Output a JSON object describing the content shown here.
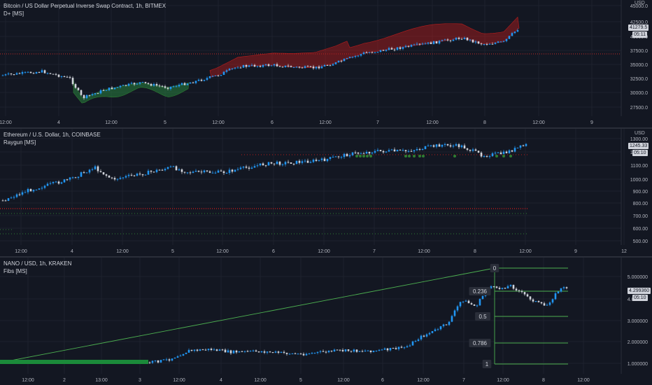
{
  "colors": {
    "bg": "#131722",
    "up": "#2196f3",
    "down": "#d1d4dc",
    "grid": "#1e222d",
    "axis_text": "#b2b5be",
    "red": "#b71c1c",
    "green": "#26a69a",
    "fib": "#4caf50"
  },
  "panes": [
    {
      "id": "btc",
      "title": "Bitcoin / US Dollar Perpetual Inverse Swap Contract, 1h, BITMEX",
      "indicator": "D+ [MS]",
      "currency": "USD",
      "price_label": "41279.5",
      "countdown": "05:11",
      "y_ticks": [
        "45000.0",
        "42500.0",
        "40000.0",
        "37500.0",
        "35000.0",
        "32500.0",
        "30000.0",
        "27500.0"
      ],
      "x_ticks": [
        "12:00",
        "4",
        "12:00",
        "5",
        "12:00",
        "6",
        "12:00",
        "7",
        "12:00",
        "8",
        "12:00",
        "9"
      ]
    },
    {
      "id": "eth",
      "title": "Ethereum / U.S. Dollar, 1h, COINBASE",
      "indicator": "Raygun [MS]",
      "currency": "USD",
      "price_label": "1245.33",
      "countdown": "05:10",
      "y_ticks": [
        "1300.00",
        "1200.00",
        "1100.00",
        "1000.00",
        "900.00",
        "800.00",
        "700.00",
        "600.00",
        "500.00"
      ],
      "x_ticks": [
        "12:00",
        "4",
        "12:00",
        "5",
        "12:00",
        "6",
        "12:00",
        "7",
        "12:00",
        "8",
        "12:00",
        "9",
        "12"
      ]
    },
    {
      "id": "nano",
      "title": "NANO / USD, 1h, KRAKEN",
      "indicator": "Fibs [MS]",
      "currency": "",
      "price_label": "4.299360",
      "countdown": "05:10",
      "y_ticks": [
        "5.000000",
        "4.000000",
        "3.000000",
        "2.000000",
        "1.000000"
      ],
      "x_ticks": [
        "12:00",
        "2",
        "13:00",
        "3",
        "12:00",
        "4",
        "12:00",
        "5",
        "12:00",
        "6",
        "12:00",
        "7",
        "12:00",
        "8",
        "12:00"
      ],
      "fib_labels": [
        "0",
        "0.236",
        "0.5",
        "0.786",
        "1"
      ]
    }
  ]
}
